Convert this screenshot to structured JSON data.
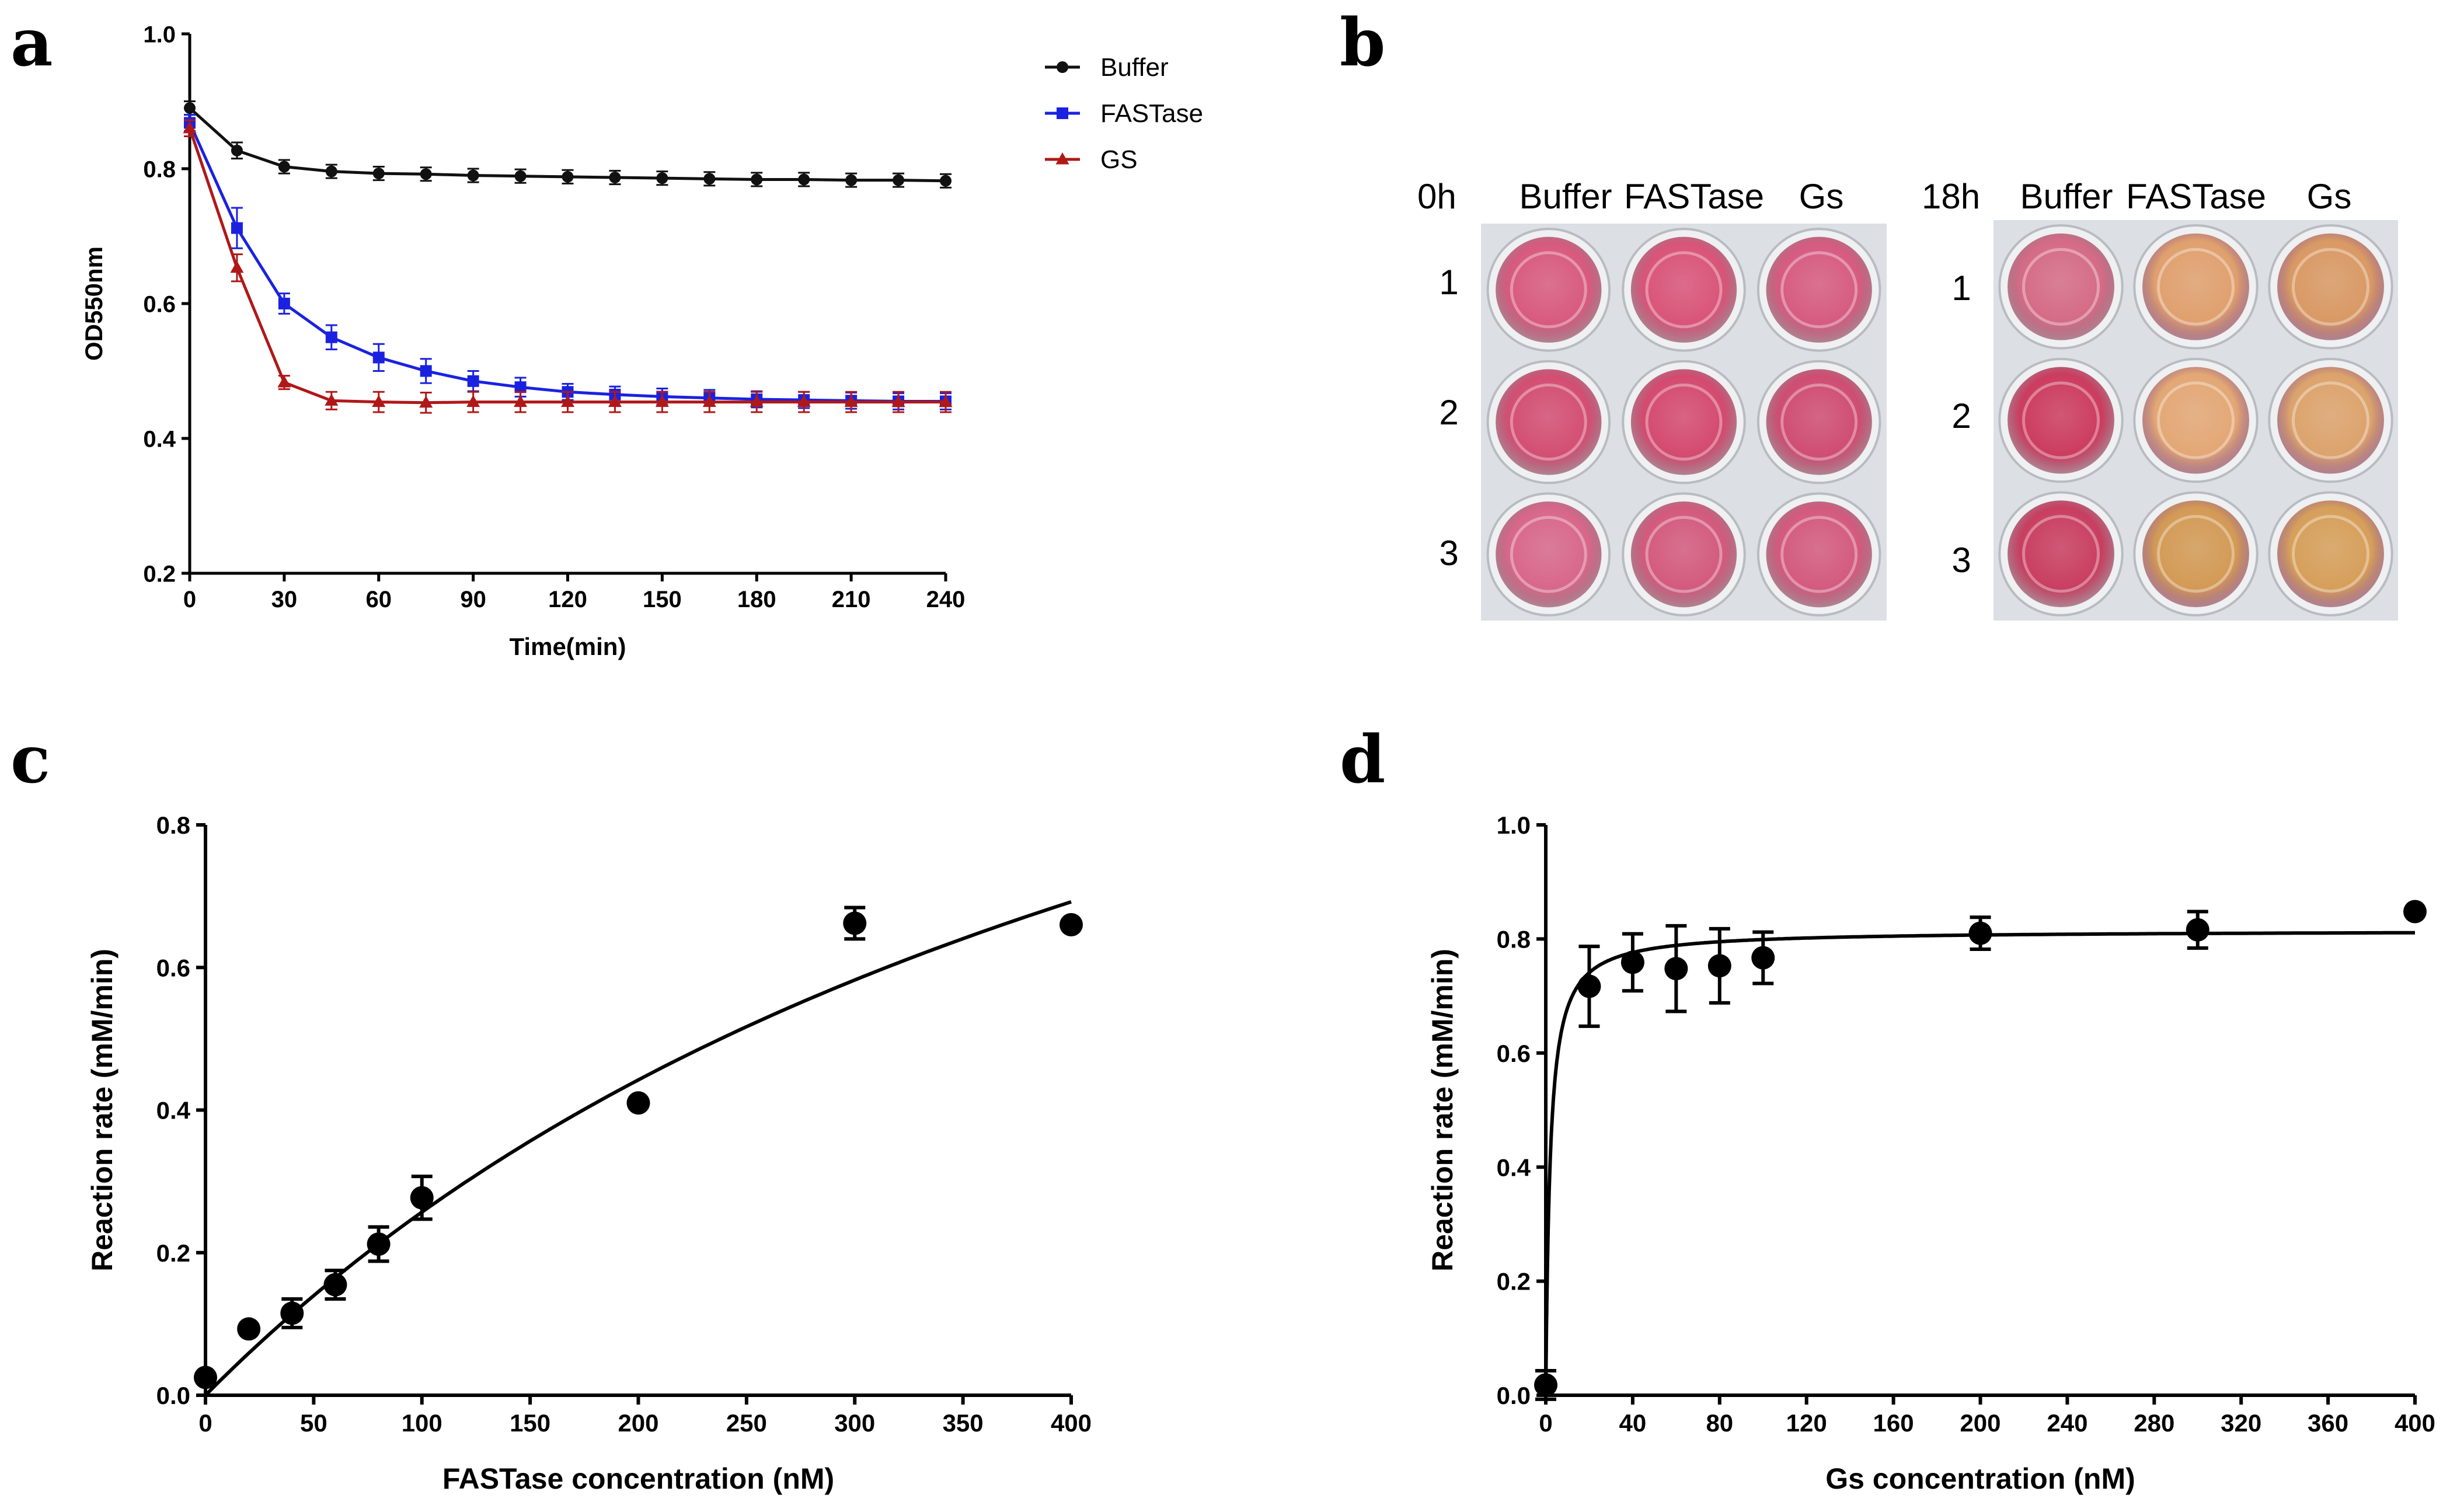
{
  "panels": {
    "a": "a",
    "b": "b",
    "c": "c",
    "d": "d"
  },
  "chart_data": [
    {
      "id": "a",
      "type": "line",
      "xlabel": "Time(min)",
      "ylabel": "OD550nm",
      "xlim": [
        0,
        240
      ],
      "ylim": [
        0.2,
        1.0
      ],
      "xticks": [
        0,
        30,
        60,
        90,
        120,
        150,
        180,
        210,
        240
      ],
      "yticks": [
        0.2,
        0.4,
        0.6,
        0.8,
        1.0
      ],
      "legend_position": "top-right",
      "x": [
        0,
        15,
        30,
        45,
        60,
        75,
        90,
        105,
        120,
        135,
        150,
        165,
        180,
        195,
        210,
        225,
        240
      ],
      "series": [
        {
          "name": "Buffer",
          "color": "#111111",
          "marker": "circle",
          "values": [
            0.89,
            0.827,
            0.803,
            0.796,
            0.793,
            0.792,
            0.79,
            0.789,
            0.788,
            0.787,
            0.786,
            0.785,
            0.784,
            0.784,
            0.783,
            0.783,
            0.782
          ],
          "errors": [
            0.01,
            0.012,
            0.01,
            0.01,
            0.01,
            0.01,
            0.01,
            0.01,
            0.01,
            0.01,
            0.01,
            0.01,
            0.01,
            0.01,
            0.01,
            0.01,
            0.01
          ]
        },
        {
          "name": "FASTase",
          "color": "#1a22e0",
          "marker": "square",
          "values": [
            0.868,
            0.712,
            0.6,
            0.55,
            0.52,
            0.5,
            0.485,
            0.476,
            0.469,
            0.465,
            0.462,
            0.46,
            0.458,
            0.457,
            0.456,
            0.455,
            0.455
          ],
          "errors": [
            0.012,
            0.03,
            0.015,
            0.018,
            0.02,
            0.018,
            0.015,
            0.014,
            0.012,
            0.012,
            0.012,
            0.012,
            0.012,
            0.012,
            0.012,
            0.012,
            0.012
          ]
        },
        {
          "name": "GS",
          "color": "#b01818",
          "marker": "triangle",
          "values": [
            0.86,
            0.653,
            0.483,
            0.456,
            0.454,
            0.453,
            0.454,
            0.454,
            0.454,
            0.454,
            0.454,
            0.454,
            0.454,
            0.454,
            0.454,
            0.454,
            0.454
          ],
          "errors": [
            0.012,
            0.02,
            0.01,
            0.013,
            0.015,
            0.015,
            0.015,
            0.015,
            0.015,
            0.015,
            0.015,
            0.015,
            0.015,
            0.015,
            0.015,
            0.015,
            0.015
          ]
        }
      ]
    },
    {
      "id": "c",
      "type": "scatter",
      "xlabel": "FASTase concentration (nM)",
      "ylabel": "Reaction rate (mM/min)",
      "xlim": [
        0,
        400
      ],
      "ylim": [
        0,
        0.8
      ],
      "xticks": [
        0,
        50,
        100,
        150,
        200,
        250,
        300,
        350,
        400
      ],
      "yticks": [
        0.0,
        0.2,
        0.4,
        0.6,
        0.8
      ],
      "x": [
        0,
        20,
        40,
        60,
        80,
        100,
        200,
        300,
        400
      ],
      "y": [
        0.025,
        0.093,
        0.115,
        0.155,
        0.212,
        0.277,
        0.41,
        0.662,
        0.66
      ],
      "errors": [
        0,
        0,
        0.02,
        0.02,
        0.024,
        0.03,
        0,
        0.022,
        0
      ],
      "fit": {
        "model": "michaelis-menten",
        "vmax": 1.59,
        "km": 519
      }
    },
    {
      "id": "d",
      "type": "scatter",
      "xlabel": "Gs concentration (nM)",
      "ylabel": "Reaction rate (mM/min)",
      "xlim": [
        0,
        400
      ],
      "ylim": [
        0,
        1.0
      ],
      "xticks": [
        0,
        40,
        80,
        120,
        160,
        200,
        240,
        280,
        320,
        360,
        400
      ],
      "yticks": [
        0.0,
        0.2,
        0.4,
        0.6,
        0.8,
        1.0
      ],
      "x": [
        0,
        20,
        40,
        60,
        80,
        100,
        200,
        300,
        400
      ],
      "y": [
        0.018,
        0.717,
        0.759,
        0.748,
        0.753,
        0.767,
        0.81,
        0.816,
        0.848
      ],
      "errors": [
        0.025,
        0.07,
        0.05,
        0.075,
        0.065,
        0.045,
        0.028,
        0.032,
        0
      ],
      "fit": {
        "model": "michaelis-menten",
        "vmax": 0.815,
        "km": 2.0
      }
    }
  ],
  "plate": {
    "left": {
      "time": "0h",
      "cols": [
        "Buffer",
        "FASTase",
        "Gs"
      ],
      "rows": [
        "1",
        "2",
        "3"
      ],
      "well_colors": [
        [
          "#d85a7e",
          "#d95479",
          "#d65b80"
        ],
        [
          "#d34e73",
          "#d44a6f",
          "#cf4d72"
        ],
        [
          "#d8678a",
          "#d35a7d",
          "#d35a7e"
        ]
      ]
    },
    "right": {
      "time": "18h",
      "cols": [
        "Buffer",
        "FASTase",
        "Gs"
      ],
      "rows": [
        "1",
        "2",
        "3"
      ],
      "well_colors": [
        [
          "#d56b86",
          "#e0a06e",
          "#d99964"
        ],
        [
          "#cc3c5f",
          "#e3a775",
          "#dca36c"
        ],
        [
          "#c93e60",
          "#d39a55",
          "#d69f5a"
        ]
      ]
    }
  }
}
